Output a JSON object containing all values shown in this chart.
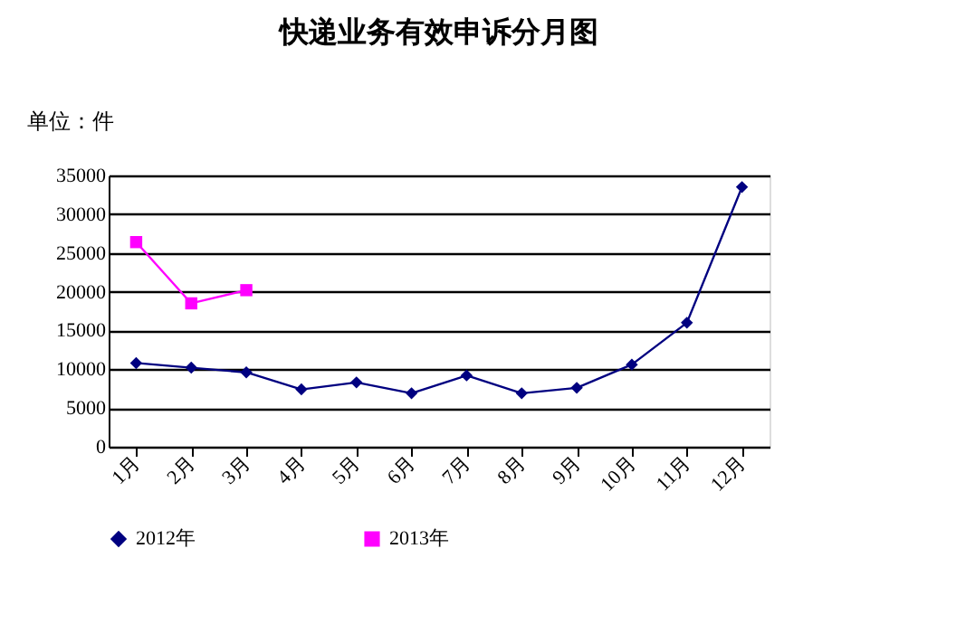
{
  "chart_data": {
    "type": "line",
    "title": "快递业务有效申诉分月图",
    "annotations": [
      "单位：件"
    ],
    "categories": [
      "1月",
      "2月",
      "3月",
      "4月",
      "5月",
      "6月",
      "7月",
      "8月",
      "9月",
      "10月",
      "11月",
      "12月"
    ],
    "series": [
      {
        "name": "2012年",
        "color": "#000080",
        "marker": "diamond",
        "values": [
          10800,
          10200,
          9600,
          7400,
          8300,
          6900,
          9200,
          6900,
          7600,
          10600,
          16000,
          33500
        ]
      },
      {
        "name": "2013年",
        "color": "#ff00ff",
        "marker": "square",
        "values": [
          26400,
          18500,
          20200,
          null,
          null,
          null,
          null,
          null,
          null,
          null,
          null,
          null
        ]
      }
    ],
    "ylim": [
      0,
      35000
    ],
    "yticks": [
      0,
      5000,
      10000,
      15000,
      20000,
      25000,
      30000,
      35000
    ],
    "grid": "y",
    "legend": "bottom"
  }
}
